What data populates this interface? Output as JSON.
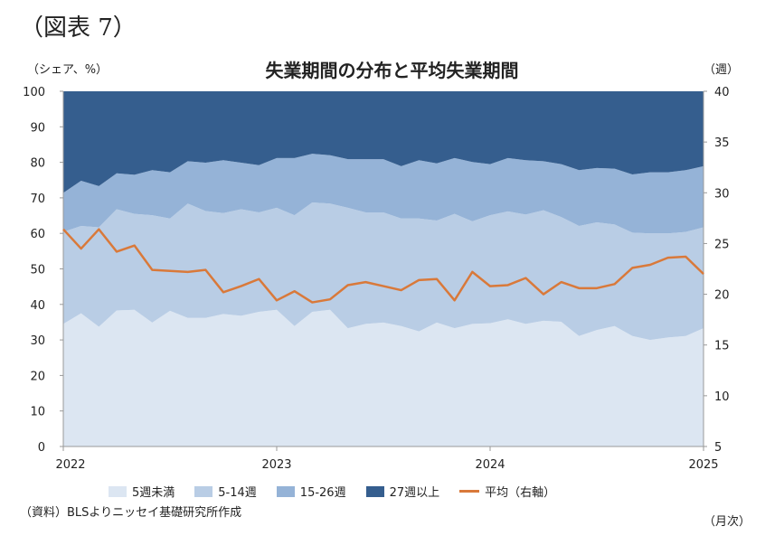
{
  "figure_label": "（図表 7）",
  "left_unit": "（シェア、%）",
  "right_unit": "（週）",
  "source": "（資料）BLSよりニッセイ基礎研究所作成",
  "frequency": "（月次）",
  "chart_data": {
    "type": "area",
    "title": "失業期間の分布と平均失業期間",
    "x_start": "2022-01",
    "x_end": "2025-01",
    "x_tick_labels": [
      "2022",
      "2023",
      "2024",
      "2025"
    ],
    "y_left": {
      "label": "シェア、%",
      "min": 0,
      "max": 100,
      "step": 10,
      "ticks": [
        "0",
        "10",
        "20",
        "30",
        "40",
        "50",
        "60",
        "70",
        "80",
        "90",
        "100"
      ]
    },
    "y_right": {
      "label": "週",
      "min": 5,
      "max": 40,
      "step": 5,
      "ticks": [
        "5",
        "10",
        "15",
        "20",
        "25",
        "30",
        "35",
        "40"
      ]
    },
    "legend_position": "bottom",
    "series": [
      {
        "name": "5週未満",
        "kind": "stacked-area",
        "axis": "left",
        "color": "#dce6f2",
        "values": [
          34.5,
          37.5,
          33.7,
          38.3,
          38.5,
          34.9,
          38.2,
          36.2,
          36.2,
          37.3,
          36.8,
          37.9,
          38.5,
          33.9,
          37.9,
          38.5,
          33.3,
          34.5,
          34.9,
          33.9,
          32.4,
          34.9,
          33.3,
          34.5,
          34.7,
          35.8,
          34.5,
          35.4,
          35.1,
          31.1,
          32.8,
          33.9,
          31.1,
          30.0,
          30.7,
          31.1,
          33.3
        ]
      },
      {
        "name": "5-14週",
        "kind": "stacked-area",
        "axis": "left",
        "color": "#b9cde5",
        "values": [
          25.9,
          24.6,
          28.0,
          28.5,
          27.0,
          30.2,
          26.0,
          32.2,
          30.1,
          28.4,
          30.0,
          28.0,
          28.7,
          31.2,
          30.8,
          29.9,
          33.9,
          31.4,
          31.0,
          30.3,
          31.8,
          28.7,
          32.2,
          28.9,
          30.4,
          30.4,
          30.8,
          31.1,
          29.5,
          31.0,
          30.3,
          28.6,
          29.1,
          30.0,
          29.3,
          29.3,
          28.4
        ]
      },
      {
        "name": "15-26週",
        "kind": "stacked-area",
        "axis": "left",
        "color": "#95b3d7",
        "values": [
          11.0,
          12.7,
          11.6,
          10.1,
          11.0,
          12.7,
          13.0,
          11.9,
          13.6,
          14.9,
          13.1,
          13.3,
          14.0,
          16.1,
          13.7,
          13.6,
          13.7,
          15.0,
          15.0,
          14.7,
          16.4,
          16.1,
          15.7,
          16.7,
          14.4,
          15.0,
          15.3,
          13.8,
          14.9,
          15.7,
          15.3,
          15.7,
          16.4,
          17.2,
          17.2,
          17.4,
          17.2
        ]
      },
      {
        "name": "27週以上",
        "kind": "stacked-area",
        "axis": "left",
        "color": "#355e8e",
        "values": [
          28.6,
          25.2,
          26.7,
          23.1,
          23.5,
          22.2,
          22.8,
          19.7,
          20.1,
          19.4,
          20.1,
          20.8,
          18.8,
          18.8,
          17.6,
          18.0,
          19.1,
          19.1,
          19.1,
          21.1,
          19.4,
          20.3,
          18.8,
          19.9,
          20.5,
          18.8,
          19.4,
          19.7,
          20.5,
          22.2,
          21.6,
          21.8,
          23.4,
          22.8,
          22.8,
          22.2,
          21.1
        ]
      },
      {
        "name": "平均（右軸）",
        "kind": "line",
        "axis": "right",
        "color": "#d9793a",
        "values": [
          26.4,
          24.5,
          26.4,
          24.2,
          24.8,
          22.4,
          22.3,
          22.2,
          22.4,
          20.2,
          20.8,
          21.5,
          19.4,
          20.3,
          19.2,
          19.5,
          20.9,
          21.2,
          20.8,
          20.4,
          21.4,
          21.5,
          19.4,
          22.2,
          20.8,
          20.9,
          21.6,
          20.0,
          21.2,
          20.6,
          20.6,
          21.0,
          22.6,
          22.9,
          23.6,
          23.7,
          22.0
        ]
      }
    ]
  }
}
